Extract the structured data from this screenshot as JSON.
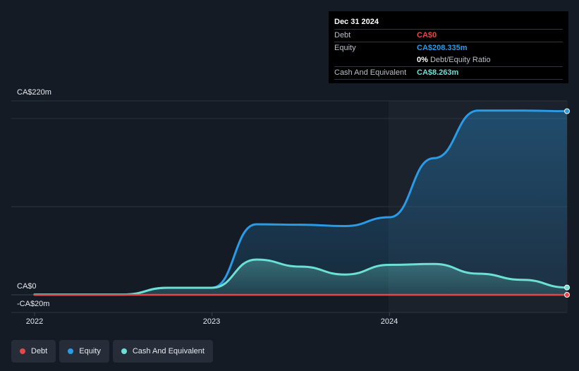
{
  "tooltip": {
    "date": "Dec 31 2024",
    "debt_label": "Debt",
    "debt_value": "CA$0",
    "equity_label": "Equity",
    "equity_value": "CA$208.335m",
    "ratio_value": "0%",
    "ratio_label": "Debt/Equity Ratio",
    "cash_label": "Cash And Equivalent",
    "cash_value": "CA$8.263m"
  },
  "legend": [
    {
      "label": "Debt",
      "color": "#e64848"
    },
    {
      "label": "Equity",
      "color": "#2a9be6"
    },
    {
      "label": "Cash And Equivalent",
      "color": "#6ce0d4"
    }
  ],
  "chart_data": {
    "type": "area",
    "title": "",
    "xlabel": "",
    "ylabel": "",
    "y_unit": "CA$m",
    "ylim": [
      -20,
      220
    ],
    "y_tick_labels": [
      "CA$220m",
      "CA$0",
      "-CA$20m"
    ],
    "x_ticks": [
      2022,
      2023,
      2024
    ],
    "x_tick_labels": [
      "2022",
      "2023",
      "2024"
    ],
    "xlim": [
      2022.0,
      2025.0
    ],
    "series": [
      {
        "name": "Debt",
        "color": "#e64848",
        "x": [
          2022.0,
          2022.5,
          2022.75,
          2023.0,
          2023.25,
          2023.5,
          2023.75,
          2024.0,
          2024.25,
          2024.5,
          2024.75,
          2025.0
        ],
        "y": [
          0,
          0,
          0,
          0,
          0,
          0,
          0,
          0,
          0,
          0,
          0,
          0
        ]
      },
      {
        "name": "Equity",
        "color": "#2a9be6",
        "x": [
          2022.0,
          2022.5,
          2022.75,
          2023.0,
          2023.25,
          2023.5,
          2023.75,
          2024.0,
          2024.25,
          2024.5,
          2024.75,
          2025.0
        ],
        "y": [
          0.3,
          0.3,
          8,
          8,
          80,
          79.5,
          78,
          88,
          155,
          209,
          209,
          208.3
        ]
      },
      {
        "name": "Cash And Equivalent",
        "color": "#6ce0d4",
        "x": [
          2022.0,
          2022.5,
          2022.75,
          2023.0,
          2023.25,
          2023.5,
          2023.75,
          2024.0,
          2024.25,
          2024.5,
          2024.75,
          2025.0
        ],
        "y": [
          0.3,
          0.3,
          8,
          8,
          40,
          32,
          23,
          34,
          35,
          24,
          17,
          8.3
        ]
      }
    ],
    "grid": true,
    "legend_position": "bottom-left"
  }
}
